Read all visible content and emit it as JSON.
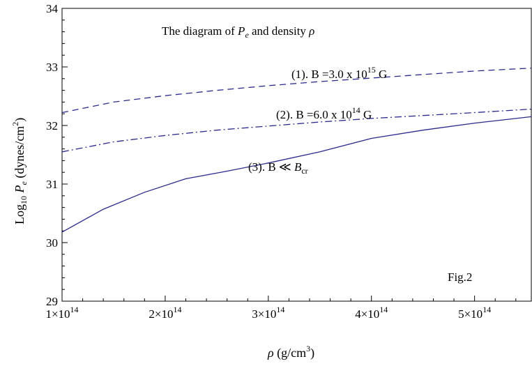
{
  "chart_data": {
    "type": "line",
    "title": "The diagram of P_e and density ρ",
    "title_parts": {
      "prefix": "The diagram of ",
      "var1": "P",
      "var1_sub": "e",
      "middle": " and density ",
      "var2": "ρ"
    },
    "xlabel": "ρ (g/cm³)",
    "xlabel_parts": {
      "var": "ρ",
      "unit": " (g/cm",
      "sup": "3",
      "close": ")"
    },
    "ylabel": "Log10 Pe (dynes/cm²)",
    "ylabel_parts": {
      "log": "Log",
      "log_sub": "10",
      "var": "P",
      "var_sub": "e",
      "unit": " (dynes/cm",
      "sup": "2",
      "close": ")"
    },
    "xlim": [
      100000000000000.0,
      555000000000000.0
    ],
    "ylim": [
      29,
      34
    ],
    "x_ticks": [
      {
        "value": 100000000000000.0,
        "mant": "1",
        "times": "×",
        "base": "10",
        "exp": "14"
      },
      {
        "value": 200000000000000.0,
        "mant": "2",
        "times": "×",
        "base": "10",
        "exp": "14"
      },
      {
        "value": 300000000000000.0,
        "mant": "3",
        "times": "×",
        "base": "10",
        "exp": "14"
      },
      {
        "value": 400000000000000.0,
        "mant": "4",
        "times": "×",
        "base": "10",
        "exp": "14"
      },
      {
        "value": 500000000000000.0,
        "mant": "5",
        "times": "×",
        "base": "10",
        "exp": "14"
      }
    ],
    "y_ticks": [
      {
        "value": 29,
        "label": "29"
      },
      {
        "value": 30,
        "label": "30"
      },
      {
        "value": 31,
        "label": "31"
      },
      {
        "value": 32,
        "label": "32"
      },
      {
        "value": 33,
        "label": "33"
      },
      {
        "value": 34,
        "label": "34"
      }
    ],
    "series": [
      {
        "name": "(1). B =3.0 x 10^15 G",
        "label_parts": {
          "text": "(1). B =3.0 x 10",
          "sup": "15",
          "tail": " G"
        },
        "style": "dashed",
        "color": "#2a2a8c",
        "x": [
          100000000000000.0,
          150000000000000.0,
          200000000000000.0,
          250000000000000.0,
          300000000000000.0,
          350000000000000.0,
          400000000000000.0,
          450000000000000.0,
          500000000000000.0,
          555000000000000.0
        ],
        "y": [
          32.22,
          32.4,
          32.51,
          32.6,
          32.68,
          32.75,
          32.81,
          32.87,
          32.93,
          32.98
        ]
      },
      {
        "name": "(2). B =6.0 x 10^14 G",
        "label_parts": {
          "text": "(2). B =6.0 x 10",
          "sup": "14",
          "tail": " G"
        },
        "style": "dashdot",
        "color": "#2a2a8c",
        "x": [
          100000000000000.0,
          150000000000000.0,
          200000000000000.0,
          250000000000000.0,
          300000000000000.0,
          350000000000000.0,
          400000000000000.0,
          450000000000000.0,
          500000000000000.0,
          555000000000000.0
        ],
        "y": [
          31.55,
          31.72,
          31.83,
          31.92,
          31.99,
          32.06,
          32.12,
          32.17,
          32.22,
          32.28
        ]
      },
      {
        "name": "(3). B ≪ B_cr",
        "label_parts": {
          "text": "(3). B ≪ ",
          "var": "B",
          "sub": "cr"
        },
        "style": "solid",
        "color": "#2a2a8c",
        "x": [
          100000000000000.0,
          140000000000000.0,
          180000000000000.0,
          220000000000000.0,
          260000000000000.0,
          300000000000000.0,
          350000000000000.0,
          400000000000000.0,
          450000000000000.0,
          500000000000000.0,
          555000000000000.0
        ],
        "y": [
          30.18,
          30.57,
          30.86,
          31.09,
          31.22,
          31.36,
          31.55,
          31.78,
          31.92,
          32.04,
          32.15
        ]
      }
    ],
    "annotations": [
      {
        "text": "Fig.2"
      }
    ],
    "grid": false,
    "legend": "inline labels"
  }
}
